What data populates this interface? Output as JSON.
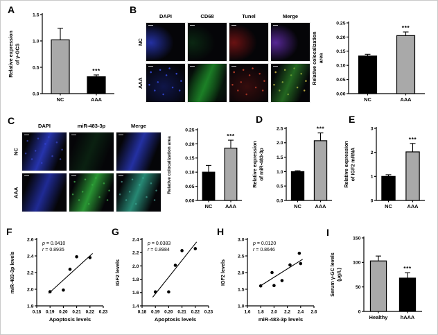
{
  "panels": {
    "A": {
      "label": "A"
    },
    "B": {
      "label": "B",
      "images": {
        "columns": [
          "DAPI",
          "CD68",
          "Tunel",
          "Merge"
        ],
        "rows": [
          {
            "label": "NC",
            "cells": [
              {
                "channel": "DAPI",
                "layers": [
                  {
                    "pattern": "arc",
                    "color": "#2e3fd6",
                    "alpha": 0.75
                  }
                ]
              },
              {
                "channel": "CD68",
                "layers": [
                  {
                    "pattern": "arc",
                    "color": "#10501e",
                    "alpha": 0.45
                  }
                ]
              },
              {
                "channel": "Tunel",
                "layers": [
                  {
                    "pattern": "arc",
                    "color": "#941616",
                    "alpha": 0.7
                  }
                ]
              },
              {
                "channel": "Merge",
                "layers": [
                  {
                    "pattern": "arc",
                    "color": "#6a2fb8",
                    "alpha": 0.8
                  }
                ]
              }
            ]
          },
          {
            "label": "AAA",
            "cells": [
              {
                "channel": "DAPI",
                "layers": [
                  {
                    "pattern": "glow",
                    "color": "#1c2a9a",
                    "alpha": 0.45
                  },
                  {
                    "pattern": "speckle",
                    "color": "#3a50e8",
                    "alpha": 0.9
                  }
                ]
              },
              {
                "channel": "CD68",
                "layers": [
                  {
                    "pattern": "band",
                    "color": "#1f8f2a",
                    "alpha": 0.85
                  },
                  {
                    "pattern": "glow",
                    "color": "#0f5e18",
                    "alpha": 0.5
                  }
                ]
              },
              {
                "channel": "Tunel",
                "layers": [
                  {
                    "pattern": "glow",
                    "color": "#5e1210",
                    "alpha": 0.55
                  },
                  {
                    "pattern": "speckle",
                    "color": "#e04a30",
                    "alpha": 0.85
                  }
                ]
              },
              {
                "channel": "Merge",
                "layers": [
                  {
                    "pattern": "band",
                    "color": "#2f8f2a",
                    "alpha": 0.7
                  },
                  {
                    "pattern": "speckle",
                    "color": "#e0c84a",
                    "alpha": 0.8
                  }
                ]
              }
            ]
          }
        ]
      }
    },
    "C": {
      "label": "C",
      "images": {
        "columns": [
          "DAPI",
          "miR-483-3p",
          "Merge"
        ],
        "rows": [
          {
            "label": "NC",
            "cells": [
              {
                "channel": "DAPI",
                "layers": [
                  {
                    "pattern": "band",
                    "color": "#2e3fd6",
                    "alpha": 0.8
                  },
                  {
                    "pattern": "speckle",
                    "color": "#4a5ae8",
                    "alpha": 0.6
                  }
                ]
              },
              {
                "channel": "miR-483-3p",
                "layers": [
                  {
                    "pattern": "band",
                    "color": "#124a1e",
                    "alpha": 0.4
                  }
                ]
              },
              {
                "channel": "Merge",
                "layers": [
                  {
                    "pattern": "band",
                    "color": "#2e3fd6",
                    "alpha": 0.75
                  }
                ]
              }
            ]
          },
          {
            "label": "AAA",
            "cells": [
              {
                "channel": "DAPI",
                "layers": [
                  {
                    "pattern": "band",
                    "color": "#2634b8",
                    "alpha": 0.8
                  }
                ]
              },
              {
                "channel": "miR-483-3p",
                "layers": [
                  {
                    "pattern": "band",
                    "color": "#2fae3a",
                    "alpha": 0.85
                  },
                  {
                    "pattern": "speckle",
                    "color": "#54d45e",
                    "alpha": 0.6
                  }
                ]
              },
              {
                "channel": "Merge",
                "layers": [
                  {
                    "pattern": "band",
                    "color": "#2fa98f",
                    "alpha": 0.8
                  },
                  {
                    "pattern": "speckle",
                    "color": "#67d9c9",
                    "alpha": 0.5
                  }
                ]
              }
            ]
          }
        ]
      }
    },
    "D": {
      "label": "D"
    },
    "E": {
      "label": "E"
    },
    "F": {
      "label": "F"
    },
    "G": {
      "label": "G"
    },
    "H": {
      "label": "H"
    },
    "I": {
      "label": "I"
    }
  },
  "colors": {
    "bar_gray": "#a9a9a9",
    "bar_black": "#000000",
    "axis": "#000000"
  },
  "chart_data": [
    {
      "panel": "A",
      "type": "bar",
      "categories": [
        "NC",
        "AAA"
      ],
      "values": [
        1.02,
        0.32
      ],
      "errors": [
        0.22,
        0.035
      ],
      "bar_colors": [
        "#a9a9a9",
        "#000000"
      ],
      "significance": [
        "",
        "***"
      ],
      "ylabel_lines": [
        "Relative expression",
        "of γ-GCS"
      ],
      "ylim": [
        0,
        1.5
      ],
      "yticks": [
        "0.0",
        "0.5",
        "1.0",
        "1.5"
      ]
    },
    {
      "panel": "B",
      "type": "bar",
      "categories": [
        "NC",
        "AAA"
      ],
      "values": [
        0.133,
        0.205
      ],
      "errors": [
        0.006,
        0.013
      ],
      "bar_colors": [
        "#000000",
        "#a9a9a9"
      ],
      "significance": [
        "",
        "***"
      ],
      "ylabel_lines": [
        "Relative colocalization",
        "area"
      ],
      "ylim": [
        0,
        0.25
      ],
      "yticks": [
        "0.00",
        "0.05",
        "0.10",
        "0.15",
        "0.20",
        "0.25"
      ]
    },
    {
      "panel": "C",
      "type": "bar",
      "categories": [
        "NC",
        "AAA"
      ],
      "values": [
        0.1,
        0.185
      ],
      "errors": [
        0.024,
        0.028
      ],
      "bar_colors": [
        "#000000",
        "#a9a9a9"
      ],
      "significance": [
        "",
        "***"
      ],
      "ylabel_lines": [
        "Relative colocalization area"
      ],
      "ylim": [
        0,
        0.25
      ],
      "yticks": [
        "0.00",
        "0.05",
        "0.10",
        "0.15",
        "0.20",
        "0.25"
      ]
    },
    {
      "panel": "D",
      "type": "bar",
      "categories": [
        "NC",
        "AAA"
      ],
      "values": [
        1.0,
        2.07
      ],
      "errors": [
        0.03,
        0.27
      ],
      "bar_colors": [
        "#000000",
        "#a9a9a9"
      ],
      "significance": [
        "",
        "***"
      ],
      "ylabel_lines": [
        "Relative expression",
        "of miR-483-3p"
      ],
      "ylim": [
        0,
        2.5
      ],
      "yticks": [
        "0.0",
        "0.5",
        "1.0",
        "1.5",
        "2.0",
        "2.5"
      ]
    },
    {
      "panel": "E",
      "type": "bar",
      "categories": [
        "NC",
        "AAA"
      ],
      "values": [
        1.0,
        2.02
      ],
      "errors": [
        0.07,
        0.35
      ],
      "bar_colors": [
        "#000000",
        "#a9a9a9"
      ],
      "significance": [
        "",
        "***"
      ],
      "ylabel_lines": [
        "Relative expression",
        "of IGF2 mRNA"
      ],
      "ylim": [
        0,
        3
      ],
      "yticks": [
        "0",
        "1",
        "2",
        "3"
      ]
    },
    {
      "panel": "F",
      "type": "scatter",
      "points": [
        [
          0.19,
          1.97
        ],
        [
          0.2,
          1.99
        ],
        [
          0.205,
          2.24
        ],
        [
          0.21,
          2.39
        ],
        [
          0.22,
          2.38
        ]
      ],
      "trendline": [
        [
          0.189,
          1.95
        ],
        [
          0.222,
          2.43
        ]
      ],
      "annotation": {
        "p": "p = 0.0410",
        "r": "r = 0.8935"
      },
      "xlabel": "Apoptosis levels",
      "ylabel": "miR-483-3p levels",
      "xlim": [
        0.18,
        0.23
      ],
      "xticks": [
        "0.18",
        "0.19",
        "0.20",
        "0.21",
        "0.22",
        "0.23"
      ],
      "ylim": [
        1.8,
        2.6
      ],
      "yticks": [
        "1.8",
        "2.0",
        "2.2",
        "2.4",
        "2.6"
      ]
    },
    {
      "panel": "G",
      "type": "scatter",
      "points": [
        [
          0.19,
          1.61
        ],
        [
          0.2,
          1.61
        ],
        [
          0.205,
          2.01
        ],
        [
          0.21,
          2.23
        ],
        [
          0.22,
          2.26
        ]
      ],
      "trendline": [
        [
          0.188,
          1.53
        ],
        [
          0.221,
          2.36
        ]
      ],
      "annotation": {
        "p": "p = 0.0383",
        "r": "r = 0.8984"
      },
      "xlabel": "Apoptosis levels",
      "ylabel": "IGF2 levels",
      "xlim": [
        0.18,
        0.23
      ],
      "xticks": [
        "0.18",
        "0.19",
        "0.20",
        "0.21",
        "0.22",
        "0.23"
      ],
      "ylim": [
        1.4,
        2.4
      ],
      "yticks": [
        "1.4",
        "1.6",
        "1.8",
        "2.0",
        "2.2",
        "2.4"
      ]
    },
    {
      "panel": "H",
      "type": "scatter",
      "points": [
        [
          1.8,
          1.6
        ],
        [
          1.97,
          2.0
        ],
        [
          2.0,
          1.61
        ],
        [
          2.12,
          1.76
        ],
        [
          2.24,
          2.23
        ],
        [
          2.38,
          2.58
        ],
        [
          2.4,
          2.27
        ]
      ],
      "trendline": [
        [
          1.81,
          1.62
        ],
        [
          2.43,
          2.4
        ]
      ],
      "annotation": {
        "p": "p = 0.0120",
        "r": "r = 0.8646"
      },
      "xlabel": "miR-483-3p levels",
      "ylabel": "IGF2 levels",
      "xlim": [
        1.6,
        2.6
      ],
      "xticks": [
        "1.6",
        "1.8",
        "2.0",
        "2.2",
        "2.4",
        "2.6"
      ],
      "ylim": [
        1.0,
        3.0
      ],
      "yticks": [
        "1.0",
        "1.5",
        "2.0",
        "2.5",
        "3.0"
      ]
    },
    {
      "panel": "I",
      "type": "bar",
      "categories": [
        "Healthy",
        "hAAA"
      ],
      "values": [
        103,
        68
      ],
      "errors": [
        10,
        11
      ],
      "bar_colors": [
        "#a9a9a9",
        "#000000"
      ],
      "significance": [
        "",
        "***"
      ],
      "ylabel_lines": [
        "Serum γ-GC levels",
        "(µg/L)"
      ],
      "ylim": [
        0,
        150
      ],
      "yticks": [
        "0",
        "50",
        "100",
        "150"
      ]
    }
  ]
}
